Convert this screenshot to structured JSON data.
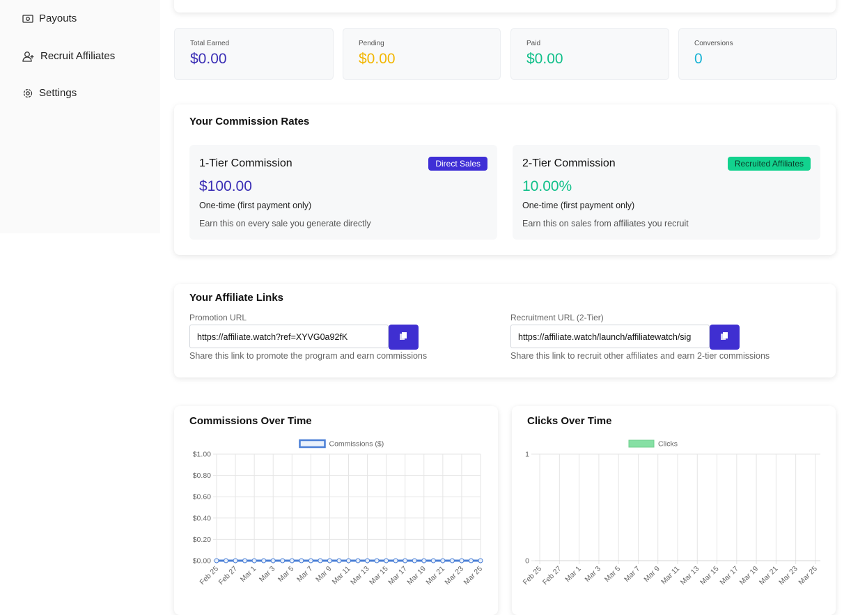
{
  "sidebar": {
    "items": [
      "Payouts",
      "Recruit Affiliates",
      "Settings"
    ]
  },
  "stats": [
    {
      "label": "Total Earned",
      "value": "$0.00"
    },
    {
      "label": "Pending",
      "value": "$0.00"
    },
    {
      "label": "Paid",
      "value": "$0.00"
    },
    {
      "label": "Conversions",
      "value": "0"
    }
  ],
  "commission": {
    "title": "Your Commission Rates",
    "tiers": [
      {
        "name": "1-Tier Commission",
        "badge": "Direct Sales",
        "rate": "$100.00",
        "frequency": "One-time (first payment only)",
        "description": "Earn this on every sale you generate directly"
      },
      {
        "name": "2-Tier Commission",
        "badge": "Recruited Affiliates",
        "rate": "10.00%",
        "frequency": "One-time (first payment only)",
        "description": "Earn this on sales from affiliates you recruit"
      }
    ]
  },
  "links": {
    "title": "Your Affiliate Links",
    "items": [
      {
        "label": "Promotion URL",
        "url": "https://affiliate.watch?ref=XYVG0a92fK",
        "help": "Share this link to promote the program and earn commissions"
      },
      {
        "label": "Recruitment URL (2-Tier)",
        "url": "https://affiliate.watch/launch/affiliatewatch/sig",
        "help": "Share this link to recruit other affiliates and earn 2-tier commissions"
      }
    ]
  },
  "chart_data": [
    {
      "type": "line",
      "title": "Commissions Over Time",
      "categories": [
        "Feb 25",
        null,
        "Feb 27",
        null,
        "Mar 1",
        null,
        "Mar 3",
        null,
        "Mar 5",
        null,
        "Mar 7",
        null,
        "Mar 9",
        null,
        "Mar 11",
        null,
        "Mar 13",
        null,
        "Mar 15",
        null,
        "Mar 17",
        null,
        "Mar 19",
        null,
        "Mar 21",
        null,
        "Mar 23",
        null,
        "Mar 25"
      ],
      "series": [
        {
          "name": "Commissions ($)",
          "color": "#4a7fd6",
          "values": [
            0,
            0,
            0,
            0,
            0,
            0,
            0,
            0,
            0,
            0,
            0,
            0,
            0,
            0,
            0,
            0,
            0,
            0,
            0,
            0,
            0,
            0,
            0,
            0,
            0,
            0,
            0,
            0,
            0
          ]
        }
      ],
      "ylim": [
        0,
        1
      ],
      "yticks": [
        {
          "value": 0,
          "label": "$0.00"
        },
        {
          "value": 0.2,
          "label": "$0.20"
        },
        {
          "value": 0.4,
          "label": "$0.40"
        },
        {
          "value": 0.6,
          "label": "$0.60"
        },
        {
          "value": 0.8,
          "label": "$0.80"
        },
        {
          "value": 1,
          "label": "$1.00"
        }
      ],
      "grid": true
    },
    {
      "type": "bar",
      "title": "Clicks Over Time",
      "categories": [
        "Feb 25",
        null,
        "Feb 27",
        null,
        "Mar 1",
        null,
        "Mar 3",
        null,
        "Mar 5",
        null,
        "Mar 7",
        null,
        "Mar 9",
        null,
        "Mar 11",
        null,
        "Mar 13",
        null,
        "Mar 15",
        null,
        "Mar 17",
        null,
        "Mar 19",
        null,
        "Mar 21",
        null,
        "Mar 23",
        null,
        "Mar 25"
      ],
      "series": [
        {
          "name": "Clicks",
          "color": "#86e0a4",
          "values": [
            0,
            0,
            0,
            0,
            0,
            0,
            0,
            0,
            0,
            0,
            0,
            0,
            0,
            0,
            0,
            0,
            0,
            0,
            0,
            0,
            0,
            0,
            0,
            0,
            0,
            0,
            0,
            0,
            0
          ]
        }
      ],
      "ylim": [
        0,
        1
      ],
      "yticks": [
        0,
        1
      ],
      "grid": true
    }
  ]
}
